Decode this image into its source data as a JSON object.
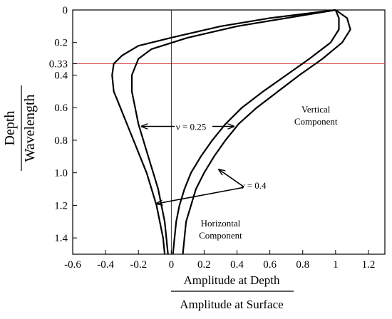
{
  "chart_data": {
    "type": "line",
    "xlabel": {
      "numerator": "Amplitude at Depth",
      "denominator": "Amplitude at Surface"
    },
    "ylabel": {
      "numerator": "Depth",
      "denominator": "Wavelength"
    },
    "xlim": [
      -0.6,
      1.3
    ],
    "ylim": [
      1.5,
      0
    ],
    "y_inverted": true,
    "x_ticks": [
      {
        "value": -0.6,
        "label": "-0.6"
      },
      {
        "value": -0.4,
        "label": "-0.4"
      },
      {
        "value": -0.2,
        "label": "-0.2"
      },
      {
        "value": 0,
        "label": "0"
      },
      {
        "value": 0.2,
        "label": "0.2"
      },
      {
        "value": 0.4,
        "label": "0.4"
      },
      {
        "value": 0.6,
        "label": "0.6"
      },
      {
        "value": 0.8,
        "label": "0.8"
      },
      {
        "value": 1.0,
        "label": "1"
      },
      {
        "value": 1.2,
        "label": "1.2"
      }
    ],
    "y_ticks": [
      {
        "value": 0,
        "label": "0"
      },
      {
        "value": 0.2,
        "label": "0.2"
      },
      {
        "value": 0.33,
        "label": "0.33"
      },
      {
        "value": 0.4,
        "label": "0.4"
      },
      {
        "value": 0.6,
        "label": "0.6"
      },
      {
        "value": 0.8,
        "label": "0.8"
      },
      {
        "value": 1.0,
        "label": "1.0"
      },
      {
        "value": 1.2,
        "label": "1.2"
      },
      {
        "value": 1.4,
        "label": "1.4"
      }
    ],
    "reference_lines": [
      {
        "axis": "y",
        "value": 0.33,
        "color": "#d9534f"
      },
      {
        "axis": "x",
        "value": 0,
        "color": "#000000"
      }
    ],
    "series": [
      {
        "group": "horizontal",
        "nu": 0.25,
        "points": [
          [
            1.0,
            0
          ],
          [
            0.7,
            0.05
          ],
          [
            0.4,
            0.1
          ],
          [
            0.1,
            0.17
          ],
          [
            -0.12,
            0.24
          ],
          [
            -0.2,
            0.3
          ],
          [
            -0.24,
            0.4
          ],
          [
            -0.24,
            0.5
          ],
          [
            -0.22,
            0.6
          ],
          [
            -0.2,
            0.7
          ],
          [
            -0.17,
            0.8
          ],
          [
            -0.14,
            0.9
          ],
          [
            -0.11,
            1.0
          ],
          [
            -0.08,
            1.1
          ],
          [
            -0.06,
            1.2
          ],
          [
            -0.04,
            1.3
          ],
          [
            -0.03,
            1.4
          ],
          [
            -0.02,
            1.5
          ]
        ]
      },
      {
        "group": "horizontal",
        "nu": 0.4,
        "points": [
          [
            1.0,
            0
          ],
          [
            0.6,
            0.05
          ],
          [
            0.3,
            0.1
          ],
          [
            0.0,
            0.17
          ],
          [
            -0.2,
            0.22
          ],
          [
            -0.3,
            0.28
          ],
          [
            -0.35,
            0.33
          ],
          [
            -0.36,
            0.4
          ],
          [
            -0.35,
            0.5
          ],
          [
            -0.31,
            0.6
          ],
          [
            -0.27,
            0.7
          ],
          [
            -0.23,
            0.8
          ],
          [
            -0.19,
            0.9
          ],
          [
            -0.15,
            1.0
          ],
          [
            -0.12,
            1.1
          ],
          [
            -0.09,
            1.2
          ],
          [
            -0.07,
            1.3
          ],
          [
            -0.05,
            1.4
          ],
          [
            -0.04,
            1.5
          ]
        ]
      },
      {
        "group": "vertical",
        "nu": 0.25,
        "points": [
          [
            1.0,
            0
          ],
          [
            1.07,
            0.05
          ],
          [
            1.09,
            0.12
          ],
          [
            1.04,
            0.2
          ],
          [
            0.92,
            0.3
          ],
          [
            0.78,
            0.4
          ],
          [
            0.65,
            0.5
          ],
          [
            0.52,
            0.6
          ],
          [
            0.41,
            0.7
          ],
          [
            0.33,
            0.8
          ],
          [
            0.26,
            0.9
          ],
          [
            0.2,
            1.0
          ],
          [
            0.15,
            1.1
          ],
          [
            0.12,
            1.2
          ],
          [
            0.09,
            1.3
          ],
          [
            0.08,
            1.4
          ],
          [
            0.07,
            1.5
          ]
        ]
      },
      {
        "group": "vertical",
        "nu": 0.4,
        "points": [
          [
            1.0,
            0
          ],
          [
            1.02,
            0.05
          ],
          [
            1.02,
            0.12
          ],
          [
            0.97,
            0.2
          ],
          [
            0.84,
            0.3
          ],
          [
            0.7,
            0.4
          ],
          [
            0.56,
            0.5
          ],
          [
            0.43,
            0.6
          ],
          [
            0.33,
            0.7
          ],
          [
            0.25,
            0.8
          ],
          [
            0.18,
            0.9
          ],
          [
            0.12,
            1.0
          ],
          [
            0.08,
            1.1
          ],
          [
            0.05,
            1.2
          ],
          [
            0.03,
            1.3
          ],
          [
            0.02,
            1.4
          ],
          [
            0.01,
            1.5
          ]
        ]
      }
    ],
    "annotations": [
      {
        "id": "nu025",
        "text": "ν = 0.25",
        "x": 0.12,
        "y": 0.72
      },
      {
        "id": "nu04",
        "text": "ν = 0.4",
        "x": 0.5,
        "y": 1.08
      },
      {
        "id": "vertical",
        "lines": [
          "Vertical",
          "Component"
        ],
        "x": 0.88,
        "y": 0.63
      },
      {
        "id": "horizontal",
        "lines": [
          "Horizontal",
          "Component"
        ],
        "x": 0.3,
        "y": 1.33
      }
    ],
    "arrows": [
      {
        "label": "nu025",
        "from": [
          0.02,
          0.715
        ],
        "to": [
          -0.18,
          0.715
        ]
      },
      {
        "label": "nu025",
        "from": [
          0.25,
          0.715
        ],
        "to": [
          0.38,
          0.715
        ]
      },
      {
        "label": "nu04",
        "from": [
          0.44,
          1.085
        ],
        "to": [
          0.29,
          0.98
        ]
      },
      {
        "label": "nu04",
        "from": [
          0.44,
          1.09
        ],
        "to": [
          -0.09,
          1.19
        ]
      }
    ],
    "grid": false,
    "legend": "none"
  }
}
